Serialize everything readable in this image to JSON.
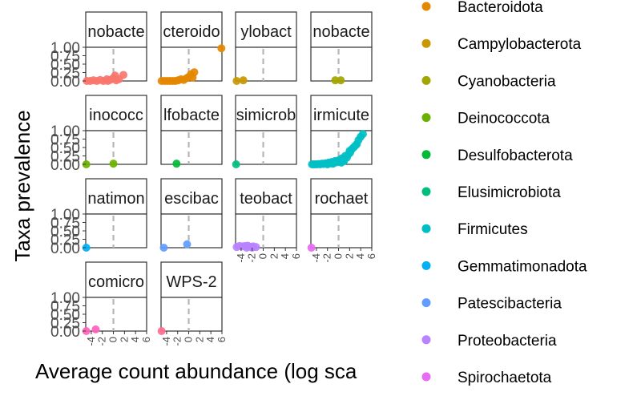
{
  "chart_data": {
    "type": "scatter",
    "layout": "faceted",
    "xlabel": "Average count abundance (log sca",
    "ylabel": "Taxa prevalence",
    "xlim": [
      -5,
      6
    ],
    "ylim": [
      0,
      1
    ],
    "x_ticks": [
      "-4",
      "-2",
      "0",
      "2",
      "4",
      "6"
    ],
    "y_ticks": [
      "0.00",
      "0.25",
      "0.50",
      "0.75",
      "1.00"
    ],
    "reference_line_x": 0,
    "legend": {
      "position": "right",
      "entries": [
        {
          "name": "Bacteroidota",
          "color": "#E58700"
        },
        {
          "name": "Campylobacterota",
          "color": "#C99800"
        },
        {
          "name": "Cyanobacteria",
          "color": "#A3A500"
        },
        {
          "name": "Deinococcota",
          "color": "#6BB100"
        },
        {
          "name": "Desulfobacterota",
          "color": "#00BA38"
        },
        {
          "name": "Elusimicrobiota",
          "color": "#00BF7D"
        },
        {
          "name": "Firmicutes",
          "color": "#00BFC4"
        },
        {
          "name": "Gemmatimonadota",
          "color": "#00B0F6"
        },
        {
          "name": "Patescibacteria",
          "color": "#619CFF"
        },
        {
          "name": "Proteobacteria",
          "color": "#B983FF"
        },
        {
          "name": "Spirochaetota",
          "color": "#E76BF3"
        }
      ]
    },
    "facets": [
      {
        "label": "nobacte",
        "color": "#F8766D",
        "points": [
          [
            -4.8,
            0.0
          ],
          [
            -4.2,
            0.0
          ],
          [
            -3.6,
            0.02
          ],
          [
            -3.0,
            0.0
          ],
          [
            -2.4,
            0.03
          ],
          [
            -1.8,
            0.0
          ],
          [
            -1.2,
            0.05
          ],
          [
            -0.6,
            0.03
          ],
          [
            0.0,
            0.08
          ],
          [
            0.3,
            0.16
          ],
          [
            -0.2,
            0.06
          ],
          [
            1.0,
            0.05
          ],
          [
            1.8,
            0.18
          ],
          [
            -1.0,
            0.0
          ],
          [
            0.5,
            0.02
          ]
        ]
      },
      {
        "label": "cteroido",
        "color": "#E58700",
        "points": [
          [
            -4.9,
            0.0
          ],
          [
            -4.4,
            0.0
          ],
          [
            -3.9,
            0.0
          ],
          [
            -3.4,
            0.0
          ],
          [
            -2.9,
            0.0
          ],
          [
            -2.4,
            0.0
          ],
          [
            -1.9,
            0.02
          ],
          [
            -1.4,
            0.05
          ],
          [
            -0.9,
            0.03
          ],
          [
            -0.4,
            0.08
          ],
          [
            0.0,
            0.12
          ],
          [
            0.4,
            0.2
          ],
          [
            1.0,
            0.26
          ],
          [
            0.7,
            0.1
          ],
          [
            5.9,
            0.97
          ]
        ]
      },
      {
        "label": "ylobact",
        "color": "#C99800",
        "points": [
          [
            -4.8,
            0.0
          ],
          [
            -3.6,
            0.02
          ]
        ]
      },
      {
        "label": "nobacte",
        "color": "#A3A500",
        "points": [
          [
            -0.6,
            0.02
          ],
          [
            0.4,
            0.02
          ]
        ]
      },
      {
        "label": "inococc",
        "color": "#6BB100",
        "points": [
          [
            -4.9,
            0.0
          ],
          [
            0.0,
            0.02
          ]
        ]
      },
      {
        "label": "lfobacte",
        "color": "#00BA38",
        "points": [
          [
            -2.2,
            0.02
          ]
        ]
      },
      {
        "label": "simicrob",
        "color": "#00BF7D",
        "points": [
          [
            -4.9,
            0.0
          ]
        ]
      },
      {
        "label": "irmicute",
        "color": "#00BFC4",
        "points": [
          [
            -4.8,
            0.0
          ],
          [
            -4.5,
            0.0
          ],
          [
            -4.2,
            0.0
          ],
          [
            -3.9,
            0.0
          ],
          [
            -3.6,
            0.01
          ],
          [
            -3.3,
            0.0
          ],
          [
            -3.0,
            0.02
          ],
          [
            -2.7,
            0.01
          ],
          [
            -2.4,
            0.03
          ],
          [
            -2.1,
            0.02
          ],
          [
            -1.8,
            0.05
          ],
          [
            -1.5,
            0.03
          ],
          [
            -1.2,
            0.07
          ],
          [
            -0.9,
            0.05
          ],
          [
            -0.6,
            0.1
          ],
          [
            -0.3,
            0.06
          ],
          [
            0.0,
            0.12
          ],
          [
            0.3,
            0.08
          ],
          [
            0.6,
            0.18
          ],
          [
            0.9,
            0.14
          ],
          [
            1.2,
            0.25
          ],
          [
            1.5,
            0.2
          ],
          [
            1.8,
            0.3
          ],
          [
            2.1,
            0.35
          ],
          [
            2.4,
            0.45
          ],
          [
            2.7,
            0.5
          ],
          [
            3.0,
            0.55
          ],
          [
            3.3,
            0.6
          ],
          [
            3.6,
            0.72
          ],
          [
            4.0,
            0.82
          ],
          [
            4.4,
            0.9
          ],
          [
            2.0,
            0.4
          ],
          [
            1.0,
            0.1
          ],
          [
            -2.0,
            0.0
          ],
          [
            -1.0,
            0.02
          ],
          [
            0.5,
            0.05
          ]
        ]
      },
      {
        "label": "natimon",
        "color": "#00B0F6",
        "points": [
          [
            -4.9,
            0.0
          ]
        ]
      },
      {
        "label": "escibac",
        "color": "#619CFF",
        "points": [
          [
            -4.5,
            0.0
          ],
          [
            -0.3,
            0.1
          ]
        ]
      },
      {
        "label": "teobact",
        "color": "#B983FF",
        "points": [
          [
            -4.8,
            0.02
          ],
          [
            -4.3,
            0.05
          ],
          [
            -3.8,
            0.04
          ],
          [
            -3.3,
            0.05
          ],
          [
            -2.8,
            0.06
          ],
          [
            -2.3,
            0.03
          ],
          [
            -1.8,
            0.04
          ],
          [
            -1.3,
            0.02
          ],
          [
            -2.0,
            0.0
          ],
          [
            -3.0,
            0.0
          ]
        ]
      },
      {
        "label": "rochaet",
        "color": "#E76BF3",
        "points": [
          [
            -4.9,
            0.0
          ]
        ]
      },
      {
        "label": "comicro",
        "color": "#FF62BC",
        "points": [
          [
            -4.9,
            0.0
          ],
          [
            -3.2,
            0.05
          ]
        ]
      },
      {
        "label": "WPS-2",
        "color": "#FF6C91",
        "points": [
          [
            -4.9,
            0.0
          ]
        ]
      }
    ]
  }
}
